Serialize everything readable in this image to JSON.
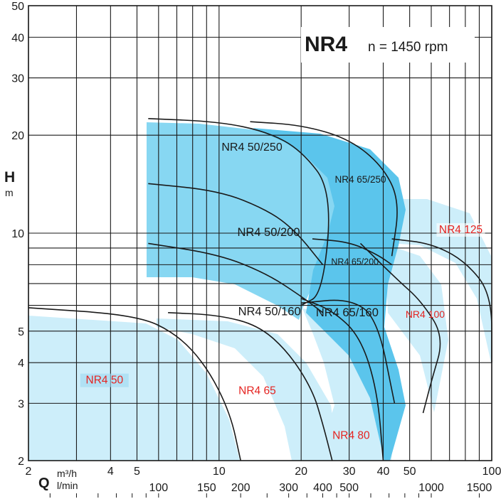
{
  "chart_data": {
    "type": "area",
    "title": "NR4",
    "subtitle": "n = 1450 rpm",
    "xlabel": "Q",
    "x_unit_primary": "m³/h",
    "x_unit_secondary": "l/min",
    "ylabel": "H",
    "y_unit": "m",
    "x_scale": "log",
    "y_scale": "log",
    "xlim": [
      2,
      100
    ],
    "ylim": [
      2,
      50
    ],
    "grid": true,
    "x_ticks_primary": [
      "2",
      "4",
      "5",
      "10",
      "20",
      "30",
      "40",
      "50",
      "100"
    ],
    "x_ticks_secondary": [
      "100",
      "150",
      "200",
      "300",
      "400",
      "500",
      "1000",
      "1500"
    ],
    "y_ticks": [
      "2",
      "3",
      "4",
      "5",
      "10",
      "20",
      "30",
      "40",
      "50"
    ],
    "series": [
      {
        "name": "NR4 50",
        "label_color": "#e52421",
        "fill": "#cdeefa",
        "curve": [
          [
            2,
            5.9
          ],
          [
            5,
            5.6
          ],
          [
            7,
            4.9
          ],
          [
            9,
            3.9
          ],
          [
            11,
            2.8
          ],
          [
            12,
            2
          ]
        ]
      },
      {
        "name": "NR4 65",
        "label_color": "#e52421",
        "fill": "#cdeefa",
        "curve": [
          [
            6.5,
            5.7
          ],
          [
            10,
            5.6
          ],
          [
            14,
            5.2
          ],
          [
            18,
            4.3
          ],
          [
            22,
            3.3
          ],
          [
            24,
            2.6
          ],
          [
            26,
            2
          ]
        ]
      },
      {
        "name": "NR4 80",
        "label_color": "#e52421",
        "fill": "#cdeefa",
        "curve": [
          [
            20,
            6.3
          ],
          [
            26,
            5.8
          ],
          [
            33,
            4.8
          ],
          [
            38,
            3.3
          ],
          [
            40,
            2
          ]
        ]
      },
      {
        "name": "NR4 100",
        "label_color": "#e52421",
        "fill": "#cdeefa",
        "curve": [
          [
            33,
            9.3
          ],
          [
            45,
            7.2
          ],
          [
            55,
            6.2
          ],
          [
            67,
            4.8
          ],
          [
            60,
            3.5
          ],
          [
            56,
            2.8
          ]
        ]
      },
      {
        "name": "NR4 125",
        "label_color": "#e52421",
        "fill": "#cdeefa",
        "curve": [
          [
            43,
            9.6
          ],
          [
            60,
            9.3
          ],
          [
            80,
            8.2
          ],
          [
            100,
            6.5
          ],
          [
            100,
            4
          ]
        ]
      },
      {
        "name": "NR4 50/160",
        "label_color": "#1a1a1a",
        "fill": "#87d7f2",
        "curve": [
          [
            5.5,
            9.3
          ],
          [
            10,
            8.6
          ],
          [
            15,
            7.5
          ],
          [
            20,
            6.4
          ],
          [
            24,
            5.7
          ]
        ]
      },
      {
        "name": "NR4 50/200",
        "label_color": "#1a1a1a",
        "fill": "#87d7f2",
        "curve": [
          [
            5.5,
            14.2
          ],
          [
            10,
            13.5
          ],
          [
            15,
            11.8
          ],
          [
            19,
            10.2
          ],
          [
            24,
            8
          ]
        ]
      },
      {
        "name": "NR4 50/250",
        "label_color": "#1a1a1a",
        "fill": "#87d7f2",
        "curve": [
          [
            5.5,
            22.5
          ],
          [
            10,
            22
          ],
          [
            15,
            20.5
          ],
          [
            20,
            18
          ],
          [
            26,
            13.5
          ],
          [
            24,
            6.5
          ],
          [
            20,
            6
          ]
        ]
      },
      {
        "name": "NR4 65/160",
        "label_color": "#1a1a1a",
        "fill": "#5bc5ec",
        "curve": [
          [
            20,
            6.1
          ],
          [
            30,
            6.3
          ],
          [
            38,
            5.5
          ],
          [
            44,
            3
          ]
        ]
      },
      {
        "name": "NR4 65/200",
        "label_color": "#1a1a1a",
        "fill": "#5bc5ec",
        "curve": [
          [
            22,
            9.6
          ],
          [
            30,
            9.4
          ],
          [
            38,
            8.6
          ],
          [
            43,
            8
          ]
        ]
      },
      {
        "name": "NR4 65/250",
        "label_color": "#1a1a1a",
        "fill": "#5bc5ec",
        "curve": [
          [
            13,
            22
          ],
          [
            20,
            21.5
          ],
          [
            30,
            19.5
          ],
          [
            40,
            16
          ],
          [
            46,
            12.5
          ],
          [
            43,
            8.5
          ]
        ]
      }
    ]
  }
}
